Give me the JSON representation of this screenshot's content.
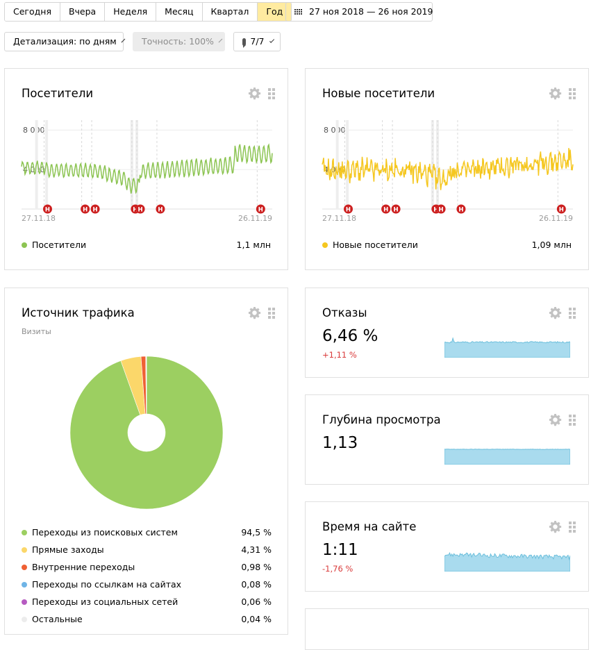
{
  "toolbar": {
    "periods": [
      "Сегодня",
      "Вчера",
      "Неделя",
      "Месяц",
      "Квартал",
      "Год"
    ],
    "active_period": "Год",
    "date_range": "27 ноя 2018 — 26 ноя 2019",
    "detail_label": "Детализация: по дням",
    "accuracy_label": "Точность: 100%",
    "notes_label": "7/7"
  },
  "visitors_widget": {
    "title": "Посетители",
    "y_ticks": [
      "8 000",
      "4 000"
    ],
    "x_start": "27.11.18",
    "x_end": "26.11.19",
    "legend_label": "Посетители",
    "legend_value": "1,1 млн",
    "color": "#8cc452",
    "note_marker": "Н"
  },
  "new_visitors_widget": {
    "title": "Новые посетители",
    "y_ticks": [
      "8 000",
      "4 000"
    ],
    "x_start": "27.11.18",
    "x_end": "26.11.19",
    "legend_label": "Новые посетители",
    "legend_value": "1,09 млн",
    "color": "#f5c720",
    "note_marker": "Н"
  },
  "traffic_widget": {
    "title": "Источник трафика",
    "subtitle": "Визиты",
    "sources": [
      {
        "label": "Переходы из поисковых систем",
        "value": "94,5 %",
        "color": "#9ccf61"
      },
      {
        "label": "Прямые заходы",
        "value": "4,31 %",
        "color": "#fbd76a"
      },
      {
        "label": "Внутренние переходы",
        "value": "0,98 %",
        "color": "#ef6034"
      },
      {
        "label": "Переходы по ссылкам на сайтах",
        "value": "0,08 %",
        "color": "#6fb4e6"
      },
      {
        "label": "Переходы из социальных сетей",
        "value": "0,06 %",
        "color": "#b65bc1"
      },
      {
        "label": "Остальные",
        "value": "0,04 %",
        "color": "#ececec"
      }
    ]
  },
  "bounce_widget": {
    "title": "Отказы",
    "value": "6,46 %",
    "delta": "+1,11 %"
  },
  "depth_widget": {
    "title": "Глубина просмотра",
    "value": "1,13"
  },
  "time_widget": {
    "title": "Время на сайте",
    "value": "1:11",
    "delta": "-1,76 %"
  },
  "chart_data": [
    {
      "type": "line",
      "title": "Посетители",
      "ylim": [
        0,
        9000
      ],
      "x_range": [
        "27.11.18",
        "26.11.19"
      ],
      "series": [
        {
          "name": "Посетители",
          "total": "1,1 млн"
        }
      ]
    },
    {
      "type": "line",
      "title": "Новые посетители",
      "ylim": [
        0,
        9000
      ],
      "x_range": [
        "27.11.18",
        "26.11.19"
      ],
      "series": [
        {
          "name": "Новые посетители",
          "total": "1,09 млн"
        }
      ]
    },
    {
      "type": "pie",
      "title": "Источник трафика",
      "categories": [
        "Переходы из поисковых систем",
        "Прямые заходы",
        "Внутренние переходы",
        "Переходы по ссылкам на сайтах",
        "Переходы из социальных сетей",
        "Остальные"
      ],
      "values": [
        94.5,
        4.31,
        0.98,
        0.08,
        0.06,
        0.04
      ]
    }
  ]
}
